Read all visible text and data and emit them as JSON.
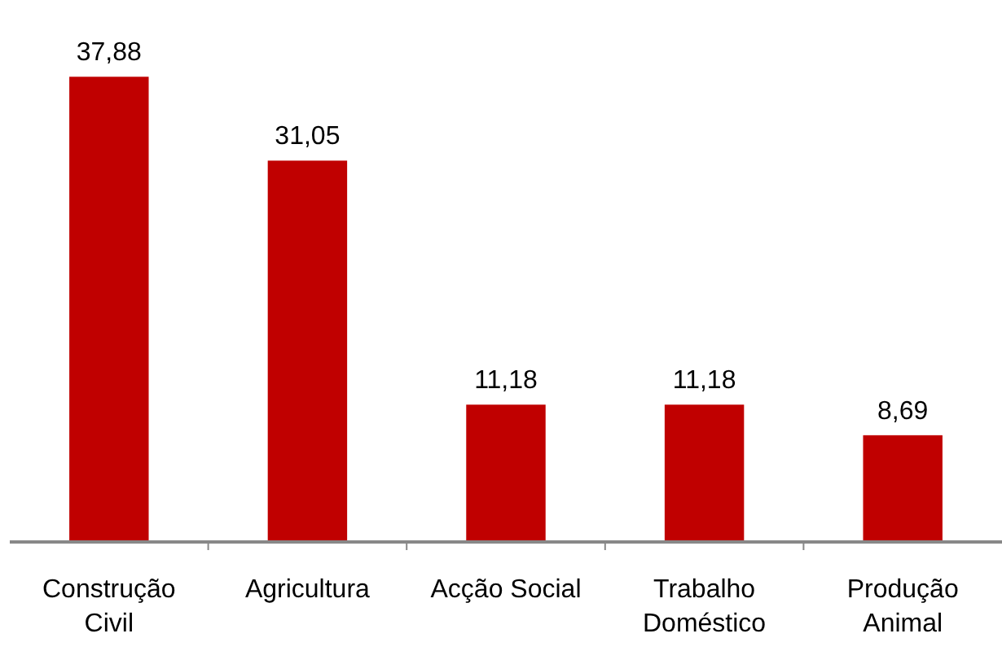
{
  "chart_data": {
    "type": "bar",
    "categories": [
      "Construção Civil",
      "Agricultura",
      "Acção Social",
      "Trabalho Doméstico",
      "Produção Animal"
    ],
    "values": [
      37.88,
      31.05,
      11.18,
      11.18,
      8.69
    ],
    "value_labels": [
      "37,88",
      "31,05",
      "11,18",
      "11,18",
      "8,69"
    ],
    "color": "#c00000"
  }
}
